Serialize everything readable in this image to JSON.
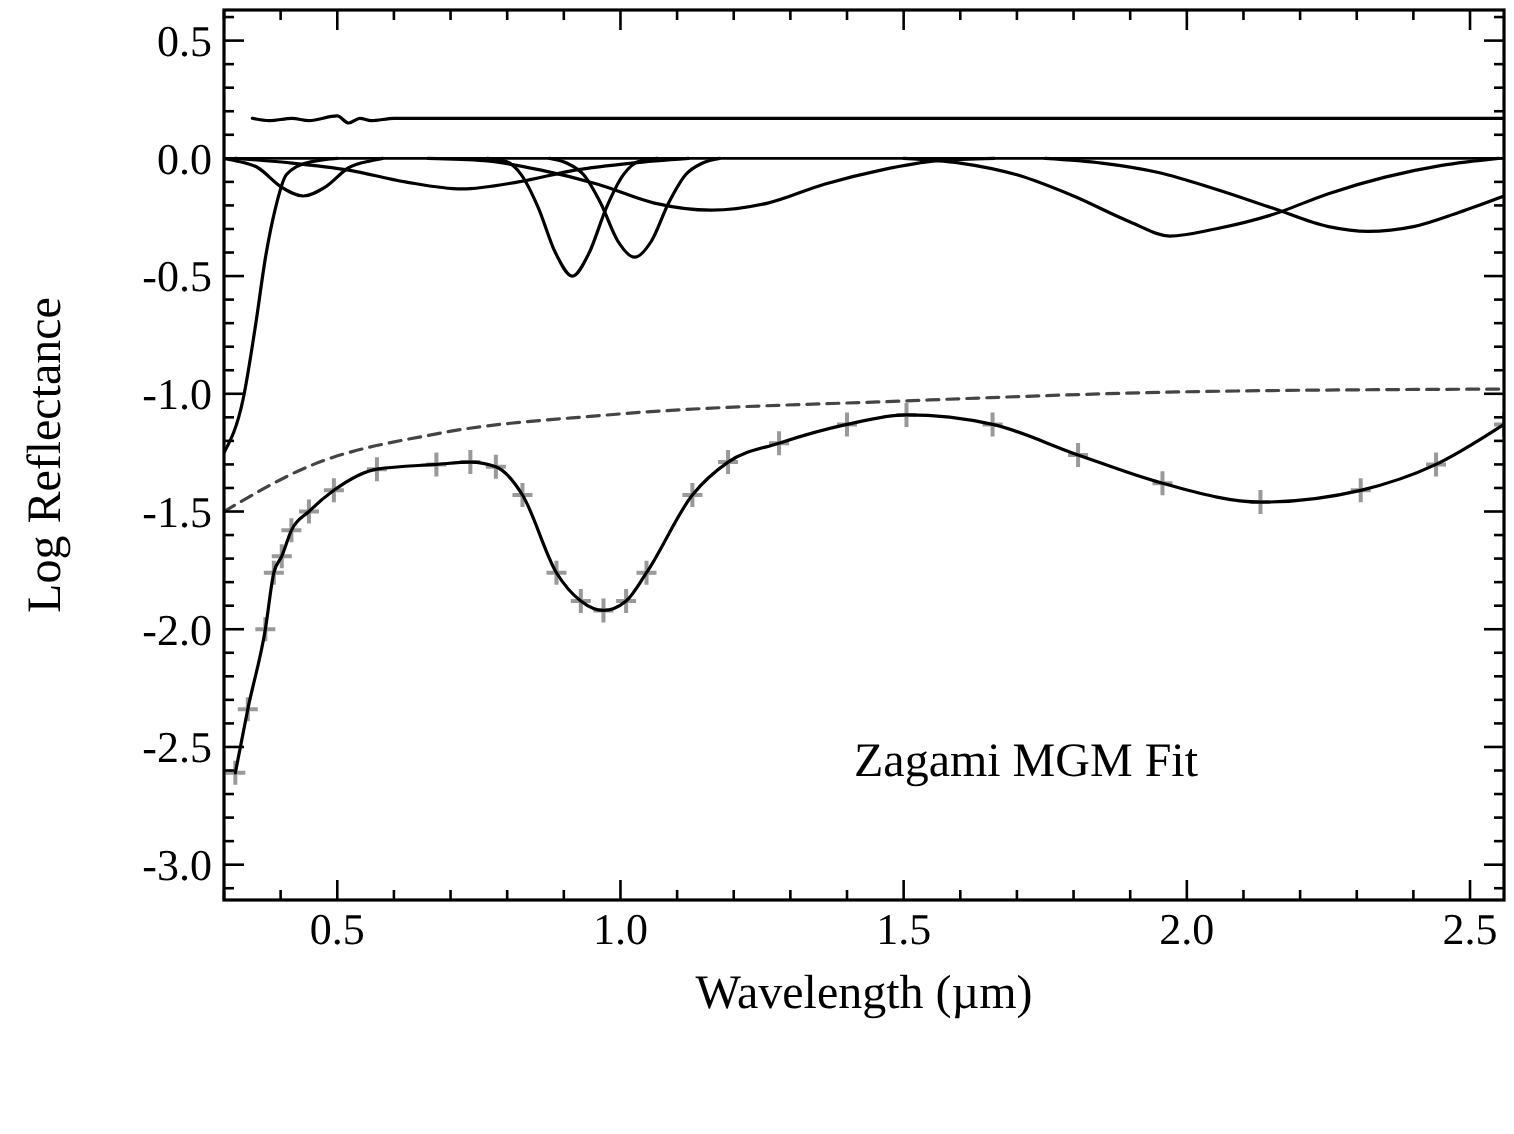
{
  "chart_data": {
    "type": "line",
    "xlabel": "Wavelength (µm)",
    "ylabel": "Log Reflectance",
    "annotations": [
      "Zagami MGM Fit"
    ],
    "xlim": [
      0.3,
      2.56
    ],
    "ylim": [
      -3.15,
      0.63
    ],
    "xticks": [
      {
        "value": 0.3,
        "label": null
      },
      {
        "value": 0.4,
        "label": null
      },
      {
        "value": 0.5,
        "label": "0.5"
      },
      {
        "value": 0.6,
        "label": null
      },
      {
        "value": 0.7,
        "label": null
      },
      {
        "value": 0.8,
        "label": null
      },
      {
        "value": 0.9,
        "label": null
      },
      {
        "value": 1.0,
        "label": "1.0"
      },
      {
        "value": 1.1,
        "label": null
      },
      {
        "value": 1.2,
        "label": null
      },
      {
        "value": 1.3,
        "label": null
      },
      {
        "value": 1.4,
        "label": null
      },
      {
        "value": 1.5,
        "label": "1.5"
      },
      {
        "value": 1.6,
        "label": null
      },
      {
        "value": 1.7,
        "label": null
      },
      {
        "value": 1.8,
        "label": null
      },
      {
        "value": 1.9,
        "label": null
      },
      {
        "value": 2.0,
        "label": "2.0"
      },
      {
        "value": 2.1,
        "label": null
      },
      {
        "value": 2.2,
        "label": null
      },
      {
        "value": 2.3,
        "label": null
      },
      {
        "value": 2.4,
        "label": null
      },
      {
        "value": 2.5,
        "label": "2.5"
      }
    ],
    "yticks": [
      {
        "value": 0.6,
        "label": null
      },
      {
        "value": 0.5,
        "label": "0.5"
      },
      {
        "value": 0.4,
        "label": null
      },
      {
        "value": 0.3,
        "label": null
      },
      {
        "value": 0.2,
        "label": null
      },
      {
        "value": 0.1,
        "label": null
      },
      {
        "value": 0.0,
        "label": "0.0"
      },
      {
        "value": -0.1,
        "label": null
      },
      {
        "value": -0.2,
        "label": null
      },
      {
        "value": -0.3,
        "label": null
      },
      {
        "value": -0.4,
        "label": null
      },
      {
        "value": -0.5,
        "label": "-0.5"
      },
      {
        "value": -0.6,
        "label": null
      },
      {
        "value": -0.7,
        "label": null
      },
      {
        "value": -0.8,
        "label": null
      },
      {
        "value": -0.9,
        "label": null
      },
      {
        "value": -1.0,
        "label": "-1.0"
      },
      {
        "value": -1.1,
        "label": null
      },
      {
        "value": -1.2,
        "label": null
      },
      {
        "value": -1.3,
        "label": null
      },
      {
        "value": -1.4,
        "label": null
      },
      {
        "value": -1.5,
        "label": "-1.5"
      },
      {
        "value": -1.6,
        "label": null
      },
      {
        "value": -1.7,
        "label": null
      },
      {
        "value": -1.8,
        "label": null
      },
      {
        "value": -1.9,
        "label": null
      },
      {
        "value": -2.0,
        "label": "-2.0"
      },
      {
        "value": -2.1,
        "label": null
      },
      {
        "value": -2.2,
        "label": null
      },
      {
        "value": -2.3,
        "label": null
      },
      {
        "value": -2.4,
        "label": null
      },
      {
        "value": -2.5,
        "label": "-2.5"
      },
      {
        "value": -2.6,
        "label": null
      },
      {
        "value": -2.7,
        "label": null
      },
      {
        "value": -2.8,
        "label": null
      },
      {
        "value": -2.9,
        "label": null
      },
      {
        "value": -3.0,
        "label": "-3.0"
      },
      {
        "value": -3.1,
        "label": null
      }
    ],
    "grid": false,
    "ref_lines": [
      {
        "axis": "y",
        "value": 0,
        "label": null,
        "color": "#000000"
      }
    ],
    "series": [
      {
        "type": "scatter",
        "marker": "cross",
        "color": "#999999",
        "x": [
          0.32,
          0.342,
          0.373,
          0.388,
          0.402,
          0.419,
          0.45,
          0.494,
          0.57,
          0.675,
          0.735,
          0.78,
          0.827,
          0.887,
          0.93,
          0.97,
          1.01,
          1.046,
          1.127,
          1.19,
          1.28,
          1.4,
          1.505,
          1.657,
          1.808,
          1.957,
          2.13,
          2.307,
          2.44,
          2.56
        ],
        "values": [
          -2.61,
          -2.34,
          -2.0,
          -1.76,
          -1.69,
          -1.58,
          -1.5,
          -1.41,
          -1.32,
          -1.3,
          -1.29,
          -1.31,
          -1.43,
          -1.76,
          -1.88,
          -1.92,
          -1.88,
          -1.76,
          -1.43,
          -1.29,
          -1.21,
          -1.13,
          -1.09,
          -1.13,
          -1.26,
          -1.38,
          -1.46,
          -1.41,
          -1.3,
          -1.13
        ]
      },
      {
        "color": "#000000",
        "x": [
          0.32,
          0.342,
          0.373,
          0.388,
          0.402,
          0.419,
          0.45,
          0.494,
          0.57,
          0.675,
          0.735,
          0.78,
          0.827,
          0.887,
          0.93,
          0.97,
          1.01,
          1.046,
          1.127,
          1.19,
          1.28,
          1.4,
          1.505,
          1.657,
          1.808,
          1.957,
          2.13,
          2.307,
          2.44,
          2.56
        ],
        "values": [
          -2.61,
          -2.34,
          -2.0,
          -1.76,
          -1.69,
          -1.58,
          -1.5,
          -1.41,
          -1.32,
          -1.3,
          -1.29,
          -1.31,
          -1.43,
          -1.76,
          -1.88,
          -1.92,
          -1.88,
          -1.76,
          -1.43,
          -1.29,
          -1.21,
          -1.13,
          -1.09,
          -1.13,
          -1.26,
          -1.38,
          -1.46,
          -1.41,
          -1.3,
          -1.13
        ]
      },
      {
        "line_style": "dashed",
        "color": "#444444",
        "x": [
          0.3,
          0.448,
          0.675,
          0.977,
          1.505,
          2.035,
          2.56
        ],
        "values": [
          -1.5,
          -1.31,
          -1.17,
          -1.09,
          -1.03,
          -0.99,
          -0.98
        ]
      },
      {
        "color": "#000000",
        "x": [
          0.35,
          0.38,
          0.42,
          0.45,
          0.5,
          0.52,
          0.54,
          0.56,
          0.6,
          1.0,
          1.5,
          2.0,
          2.56
        ],
        "values": [
          0.17,
          0.16,
          0.17,
          0.16,
          0.18,
          0.15,
          0.17,
          0.16,
          0.17,
          0.17,
          0.17,
          0.17,
          0.17
        ]
      },
      {
        "color": "#000000",
        "x": [
          0.3,
          0.334,
          0.355,
          0.374,
          0.39,
          0.41,
          0.445,
          0.5
        ],
        "values": [
          -1.25,
          -1.02,
          -0.72,
          -0.41,
          -0.22,
          -0.07,
          -0.02,
          0
        ]
      },
      {
        "color": "#000000",
        "x": [
          0.3,
          0.32,
          0.36,
          0.4,
          0.44,
          0.48,
          0.52,
          0.56,
          0.58
        ],
        "values": [
          0,
          -0.01,
          -0.04,
          -0.12,
          -0.16,
          -0.12,
          -0.04,
          -0.01,
          0
        ]
      },
      {
        "color": "#000000",
        "x": [
          0.32,
          0.42,
          0.52,
          0.62,
          0.72,
          0.82,
          0.92,
          1.02,
          1.12
        ],
        "values": [
          0,
          -0.02,
          -0.05,
          -0.1,
          -0.13,
          -0.1,
          -0.05,
          -0.02,
          0
        ]
      },
      {
        "color": "#000000",
        "x": [
          0.765,
          0.795,
          0.825,
          0.855,
          0.885,
          0.915,
          0.945,
          0.975,
          1.005,
          1.035,
          1.065
        ],
        "values": [
          0,
          -0.01,
          -0.07,
          -0.21,
          -0.4,
          -0.5,
          -0.4,
          -0.21,
          -0.07,
          -0.01,
          0
        ]
      },
      {
        "color": "#000000",
        "x": [
          0.875,
          0.905,
          0.935,
          0.965,
          0.995,
          1.025,
          1.055,
          1.085,
          1.115,
          1.145,
          1.175
        ],
        "values": [
          0,
          -0.02,
          -0.07,
          -0.19,
          -0.35,
          -0.42,
          -0.35,
          -0.19,
          -0.07,
          -0.02,
          0
        ]
      },
      {
        "color": "#000000",
        "x": [
          0.66,
          0.76,
          0.86,
          0.96,
          1.06,
          1.16,
          1.26,
          1.36,
          1.46,
          1.56,
          1.66
        ],
        "values": [
          0,
          -0.01,
          -0.05,
          -0.11,
          -0.19,
          -0.22,
          -0.19,
          -0.11,
          -0.05,
          -0.01,
          0
        ]
      },
      {
        "color": "#000000",
        "x": [
          1.5,
          1.6,
          1.7,
          1.8,
          1.9,
          1.97,
          2.05,
          2.15,
          2.25,
          2.35,
          2.45,
          2.55
        ],
        "values": [
          0,
          -0.02,
          -0.07,
          -0.16,
          -0.27,
          -0.33,
          -0.3,
          -0.24,
          -0.15,
          -0.08,
          -0.03,
          0
        ]
      },
      {
        "color": "#000000",
        "x": [
          1.75,
          1.85,
          1.95,
          2.05,
          2.15,
          2.25,
          2.32,
          2.4,
          2.48,
          2.56
        ],
        "values": [
          0,
          -0.02,
          -0.06,
          -0.13,
          -0.21,
          -0.29,
          -0.31,
          -0.29,
          -0.23,
          -0.16
        ]
      }
    ]
  }
}
